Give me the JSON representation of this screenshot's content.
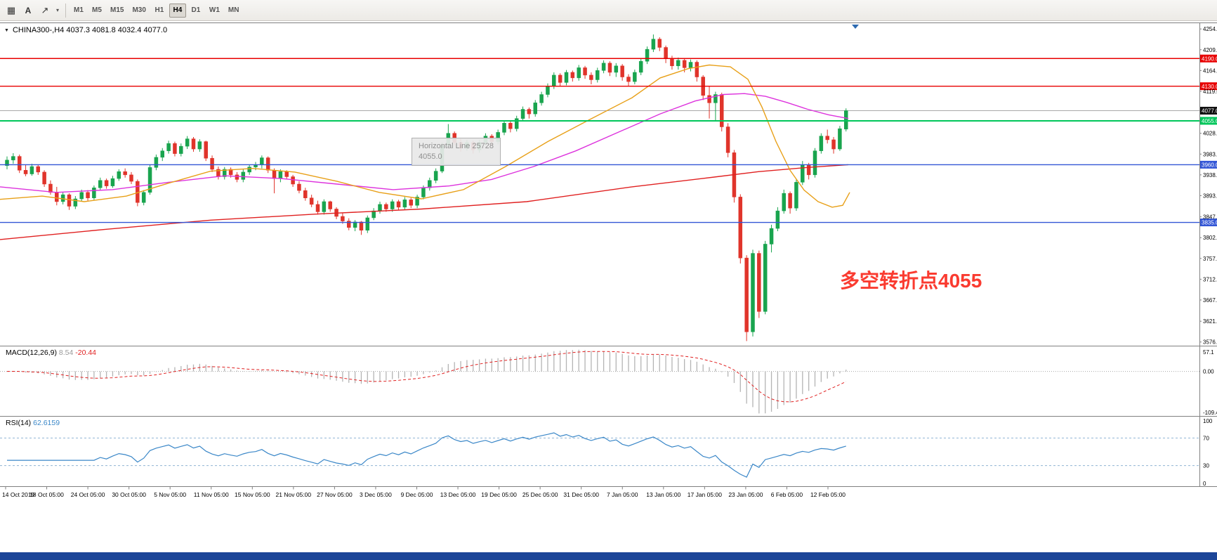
{
  "toolbar": {
    "buttons": [
      {
        "name": "windows-grid-button",
        "glyph": "▦"
      },
      {
        "name": "text-annotation-button",
        "glyph": "A"
      },
      {
        "name": "draw-arrow-button",
        "glyph": "↗"
      },
      {
        "name": "draw-tools-caret",
        "glyph": "▾"
      }
    ],
    "timeframes": [
      {
        "label": "M1"
      },
      {
        "label": "M5"
      },
      {
        "label": "M15"
      },
      {
        "label": "M30"
      },
      {
        "label": "H1"
      },
      {
        "label": "H4",
        "active": true
      },
      {
        "label": "D1"
      },
      {
        "label": "W1"
      },
      {
        "label": "MN"
      }
    ]
  },
  "chart_data": {
    "type": "candlestick",
    "header": "CHINA300-,H4  4037.3 4081.8 4032.4 4077.0",
    "symbol": "CHINA300-",
    "timeframe": "H4",
    "ohlc_display": {
      "open": "4037.3",
      "high": "4081.8",
      "low": "4032.4",
      "close": "4077.0"
    },
    "annotation": "多空转折点4055",
    "tooltip": {
      "line1": "Horizontal Line 25728",
      "line2": "4055.0"
    },
    "colors": {
      "bull": "#19a44e",
      "bear": "#e0342b",
      "ma_fast": "#e8a018",
      "ma_mid": "#dd33dd",
      "ma_slow": "#e02020",
      "macd_hist": "#b4b4b4",
      "macd_signal": "#e02020",
      "rsi": "#3a87c8",
      "level_red": "#e80000",
      "level_green": "#00c65a",
      "level_blue": "#3356d6",
      "current_price_box": "#111111",
      "annotation_red": "#fa3b30"
    },
    "price_axis": {
      "ticks": [
        4254.0,
        4209.0,
        4164.0,
        4119.0,
        4028.0,
        3983.0,
        3938.0,
        3893.0,
        3847.0,
        3802.0,
        3757.0,
        3712.0,
        3667.0,
        3621.0,
        3576.0
      ]
    },
    "levels": [
      {
        "name": "hline-4190",
        "price": 4190.0,
        "label": "4190.0",
        "color": "#e80000",
        "width": 1.4
      },
      {
        "name": "hline-4130",
        "price": 4130.0,
        "label": "4130.0",
        "color": "#e80000",
        "width": 1.4
      },
      {
        "name": "hline-4055",
        "price": 4055.0,
        "label": "4055.0",
        "color": "#00c65a",
        "width": 2
      },
      {
        "name": "hline-3960",
        "price": 3960.0,
        "label": "3960.0",
        "color": "#3356d6",
        "width": 1.4
      },
      {
        "name": "hline-3835",
        "price": 3835.0,
        "label": "3835.0",
        "color": "#3356d6",
        "width": 1.4
      }
    ],
    "current_price": {
      "price": 4077.0,
      "label": "4077.0"
    },
    "moving_averages": [
      {
        "name": "ma-slow-red",
        "color": "#e02020",
        "points": [
          [
            0,
            3798
          ],
          [
            150,
            3820
          ],
          [
            300,
            3840
          ],
          [
            450,
            3853
          ],
          [
            600,
            3864
          ],
          [
            750,
            3880
          ],
          [
            900,
            3912
          ],
          [
            1000,
            3930
          ],
          [
            1080,
            3945
          ],
          [
            1150,
            3954
          ],
          [
            1208,
            3960
          ]
        ]
      },
      {
        "name": "ma-mid-magenta",
        "color": "#dd33dd",
        "points": [
          [
            0,
            3912
          ],
          [
            80,
            3900
          ],
          [
            160,
            3906
          ],
          [
            240,
            3922
          ],
          [
            320,
            3936
          ],
          [
            400,
            3930
          ],
          [
            480,
            3918
          ],
          [
            560,
            3906
          ],
          [
            640,
            3914
          ],
          [
            700,
            3928
          ],
          [
            760,
            3956
          ],
          [
            820,
            3990
          ],
          [
            880,
            4030
          ],
          [
            940,
            4070
          ],
          [
            990,
            4098
          ],
          [
            1030,
            4112
          ],
          [
            1060,
            4114
          ],
          [
            1090,
            4108
          ],
          [
            1120,
            4095
          ],
          [
            1150,
            4080
          ],
          [
            1180,
            4068
          ],
          [
            1208,
            4060
          ]
        ]
      },
      {
        "name": "ma-fast-orange",
        "color": "#e8a018",
        "points": [
          [
            0,
            3885
          ],
          [
            60,
            3892
          ],
          [
            120,
            3880
          ],
          [
            180,
            3892
          ],
          [
            240,
            3920
          ],
          [
            300,
            3946
          ],
          [
            360,
            3952
          ],
          [
            420,
            3944
          ],
          [
            480,
            3924
          ],
          [
            540,
            3900
          ],
          [
            600,
            3886
          ],
          [
            660,
            3906
          ],
          [
            720,
            3956
          ],
          [
            780,
            4010
          ],
          [
            840,
            4058
          ],
          [
            900,
            4105
          ],
          [
            940,
            4148
          ],
          [
            980,
            4168
          ],
          [
            1010,
            4176
          ],
          [
            1040,
            4172
          ],
          [
            1065,
            4145
          ],
          [
            1085,
            4085
          ],
          [
            1105,
            4010
          ],
          [
            1125,
            3948
          ],
          [
            1145,
            3905
          ],
          [
            1165,
            3880
          ],
          [
            1185,
            3868
          ],
          [
            1200,
            3872
          ],
          [
            1210,
            3900
          ]
        ]
      }
    ],
    "candles": [
      [
        3958,
        3978,
        3950,
        3970
      ],
      [
        3970,
        3985,
        3962,
        3978
      ],
      [
        3978,
        3982,
        3942,
        3948
      ],
      [
        3948,
        3960,
        3935,
        3940
      ],
      [
        3940,
        3962,
        3936,
        3956
      ],
      [
        3956,
        3960,
        3938,
        3944
      ],
      [
        3944,
        3948,
        3912,
        3918
      ],
      [
        3918,
        3926,
        3895,
        3900
      ],
      [
        3900,
        3912,
        3872,
        3880
      ],
      [
        3880,
        3900,
        3874,
        3895
      ],
      [
        3895,
        3898,
        3862,
        3870
      ],
      [
        3870,
        3892,
        3864,
        3886
      ],
      [
        3886,
        3906,
        3880,
        3900
      ],
      [
        3900,
        3905,
        3882,
        3888
      ],
      [
        3888,
        3915,
        3884,
        3910
      ],
      [
        3910,
        3932,
        3905,
        3926
      ],
      [
        3926,
        3930,
        3908,
        3914
      ],
      [
        3914,
        3936,
        3910,
        3930
      ],
      [
        3930,
        3950,
        3925,
        3945
      ],
      [
        3945,
        3952,
        3932,
        3938
      ],
      [
        3938,
        3944,
        3918,
        3924
      ],
      [
        3924,
        3928,
        3870,
        3878
      ],
      [
        3878,
        3905,
        3872,
        3900
      ],
      [
        3900,
        3960,
        3895,
        3954
      ],
      [
        3954,
        3982,
        3948,
        3976
      ],
      [
        3976,
        3996,
        3968,
        3990
      ],
      [
        3990,
        4012,
        3984,
        4006
      ],
      [
        4006,
        4010,
        3978,
        3984
      ],
      [
        3984,
        4006,
        3978,
        4000
      ],
      [
        4000,
        4022,
        3994,
        4016
      ],
      [
        4016,
        4020,
        3988,
        3994
      ],
      [
        3994,
        4015,
        3988,
        4010
      ],
      [
        4010,
        4012,
        3968,
        3974
      ],
      [
        3974,
        3980,
        3944,
        3950
      ],
      [
        3950,
        3956,
        3928,
        3934
      ],
      [
        3934,
        3955,
        3928,
        3950
      ],
      [
        3950,
        3954,
        3932,
        3938
      ],
      [
        3938,
        3944,
        3922,
        3928
      ],
      [
        3928,
        3950,
        3922,
        3944
      ],
      [
        3944,
        3960,
        3938,
        3955
      ],
      [
        3955,
        3966,
        3948,
        3960
      ],
      [
        3960,
        3980,
        3952,
        3975
      ],
      [
        3975,
        3978,
        3942,
        3948
      ],
      [
        3948,
        3952,
        3898,
        3930
      ],
      [
        3930,
        3950,
        3922,
        3945
      ],
      [
        3945,
        3948,
        3928,
        3934
      ],
      [
        3934,
        3938,
        3912,
        3918
      ],
      [
        3918,
        3924,
        3898,
        3904
      ],
      [
        3904,
        3910,
        3882,
        3888
      ],
      [
        3888,
        3895,
        3868,
        3874
      ],
      [
        3874,
        3882,
        3852,
        3858
      ],
      [
        3858,
        3885,
        3852,
        3880
      ],
      [
        3880,
        3882,
        3858,
        3864
      ],
      [
        3864,
        3868,
        3842,
        3848
      ],
      [
        3848,
        3856,
        3832,
        3838
      ],
      [
        3838,
        3844,
        3818,
        3824
      ],
      [
        3824,
        3840,
        3816,
        3836
      ],
      [
        3836,
        3838,
        3808,
        3818
      ],
      [
        3818,
        3850,
        3812,
        3845
      ],
      [
        3845,
        3866,
        3840,
        3860
      ],
      [
        3860,
        3880,
        3854,
        3874
      ],
      [
        3874,
        3878,
        3858,
        3864
      ],
      [
        3864,
        3885,
        3858,
        3880
      ],
      [
        3880,
        3884,
        3862,
        3868
      ],
      [
        3868,
        3890,
        3862,
        3884
      ],
      [
        3884,
        3888,
        3866,
        3872
      ],
      [
        3872,
        3895,
        3866,
        3890
      ],
      [
        3890,
        3915,
        3885,
        3910
      ],
      [
        3910,
        3932,
        3904,
        3926
      ],
      [
        3926,
        3952,
        3920,
        3946
      ],
      [
        3946,
        4008,
        3942,
        4002
      ],
      [
        4002,
        4048,
        3996,
        4028
      ],
      [
        4028,
        4032,
        4002,
        4008
      ],
      [
        4008,
        4016,
        3988,
        3996
      ],
      [
        3996,
        4014,
        3990,
        4008
      ],
      [
        4008,
        4012,
        3984,
        3992
      ],
      [
        3992,
        4014,
        3986,
        4008
      ],
      [
        4008,
        4028,
        4002,
        4022
      ],
      [
        4022,
        4026,
        4002,
        4010
      ],
      [
        4010,
        4036,
        4004,
        4030
      ],
      [
        4030,
        4056,
        4024,
        4050
      ],
      [
        4050,
        4054,
        4030,
        4038
      ],
      [
        4038,
        4066,
        4032,
        4060
      ],
      [
        4060,
        4086,
        4054,
        4080
      ],
      [
        4080,
        4084,
        4060,
        4070
      ],
      [
        4070,
        4100,
        4064,
        4094
      ],
      [
        4094,
        4118,
        4088,
        4112
      ],
      [
        4112,
        4136,
        4106,
        4130
      ],
      [
        4130,
        4160,
        4124,
        4154
      ],
      [
        4154,
        4158,
        4130,
        4138
      ],
      [
        4138,
        4165,
        4132,
        4160
      ],
      [
        4160,
        4164,
        4140,
        4148
      ],
      [
        4148,
        4176,
        4142,
        4170
      ],
      [
        4170,
        4174,
        4146,
        4154
      ],
      [
        4154,
        4160,
        4134,
        4144
      ],
      [
        4144,
        4170,
        4138,
        4164
      ],
      [
        4164,
        4186,
        4158,
        4180
      ],
      [
        4180,
        4184,
        4152,
        4160
      ],
      [
        4160,
        4180,
        4150,
        4174
      ],
      [
        4174,
        4178,
        4142,
        4150
      ],
      [
        4150,
        4156,
        4130,
        4140
      ],
      [
        4140,
        4166,
        4134,
        4160
      ],
      [
        4160,
        4190,
        4154,
        4184
      ],
      [
        4184,
        4216,
        4178,
        4210
      ],
      [
        4210,
        4242,
        4204,
        4232
      ],
      [
        4232,
        4236,
        4206,
        4214
      ],
      [
        4214,
        4218,
        4180,
        4190
      ],
      [
        4190,
        4196,
        4166,
        4174
      ],
      [
        4174,
        4192,
        4166,
        4186
      ],
      [
        4186,
        4190,
        4160,
        4170
      ],
      [
        4170,
        4188,
        4162,
        4182
      ],
      [
        4182,
        4186,
        4140,
        4150
      ],
      [
        4150,
        4154,
        4100,
        4110
      ],
      [
        4110,
        4130,
        4060,
        4094
      ],
      [
        4094,
        4118,
        4056,
        4112
      ],
      [
        4112,
        4116,
        4032,
        4042
      ],
      [
        4042,
        4050,
        3976,
        3986
      ],
      [
        3986,
        3992,
        3878,
        3890
      ],
      [
        3890,
        3896,
        3746,
        3758
      ],
      [
        3758,
        3764,
        3578,
        3598
      ],
      [
        3598,
        3776,
        3588,
        3768
      ],
      [
        3768,
        3774,
        3628,
        3642
      ],
      [
        3642,
        3795,
        3636,
        3788
      ],
      [
        3788,
        3830,
        3770,
        3822
      ],
      [
        3822,
        3868,
        3816,
        3860
      ],
      [
        3860,
        3906,
        3854,
        3898
      ],
      [
        3898,
        3902,
        3854,
        3866
      ],
      [
        3866,
        3928,
        3860,
        3922
      ],
      [
        3922,
        3968,
        3916,
        3960
      ],
      [
        3960,
        3964,
        3928,
        3938
      ],
      [
        3938,
        3996,
        3932,
        3990
      ],
      [
        3990,
        4028,
        3984,
        4022
      ],
      [
        4022,
        4036,
        4006,
        4014
      ],
      [
        4014,
        4020,
        3984,
        3994
      ],
      [
        3994,
        4044,
        3990,
        4038
      ],
      [
        4037,
        4082,
        4032,
        4077
      ]
    ],
    "macd": {
      "title": "MACD(12,26,9)",
      "value_main": "8.54",
      "value_signal": "-20.44",
      "axis_top": "57.1",
      "axis_zero": "0.00",
      "axis_bottom": "-109.43",
      "params": [
        12,
        26,
        9
      ]
    },
    "rsi": {
      "title": "RSI(14)",
      "value": "62.6159",
      "axis": [
        "100",
        "70",
        "30",
        "0"
      ],
      "level_lines": [
        70,
        30
      ],
      "period": 14
    },
    "time_labels": [
      "14 Oct 2019",
      "18 Oct 05:00",
      "24 Oct 05:00",
      "30 Oct 05:00",
      "5 Nov 05:00",
      "11 Nov 05:00",
      "15 Nov 05:00",
      "21 Nov 05:00",
      "27 Nov 05:00",
      "3 Dec 05:00",
      "9 Dec 05:00",
      "13 Dec 05:00",
      "19 Dec 05:00",
      "25 Dec 05:00",
      "31 Dec 05:00",
      "7 Jan 05:00",
      "13 Jan 05:00",
      "17 Jan 05:00",
      "23 Jan 05:00",
      "6 Feb 05:00",
      "12 Feb 05:00"
    ]
  }
}
